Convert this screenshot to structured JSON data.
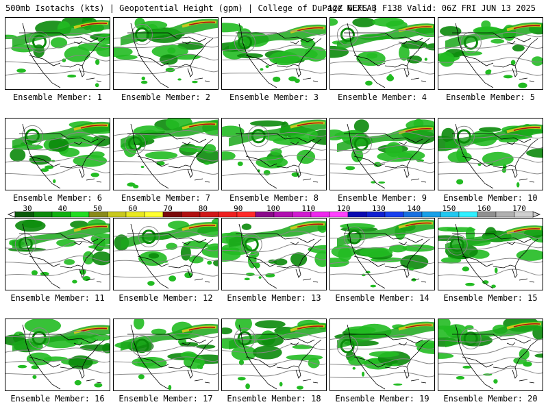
{
  "header": {
    "title_left": "500mb Isotachs (kts) | Geopotential Height (gpm) | College of DuPage NEXLAB",
    "title_right": "12Z GEFS | F138 Valid: 06Z FRI JUN 13 2025"
  },
  "members": [
    "Ensemble Member: 1",
    "Ensemble Member: 2",
    "Ensemble Member: 3",
    "Ensemble Member: 4",
    "Ensemble Member: 5",
    "Ensemble Member: 6",
    "Ensemble Member: 7",
    "Ensemble Member: 8",
    "Ensemble Member: 9",
    "Ensemble Member: 10",
    "Ensemble Member: 11",
    "Ensemble Member: 12",
    "Ensemble Member: 13",
    "Ensemble Member: 14",
    "Ensemble Member: 15",
    "Ensemble Member: 16",
    "Ensemble Member: 17",
    "Ensemble Member: 18",
    "Ensemble Member: 19",
    "Ensemble Member: 20"
  ],
  "colorbar": {
    "ticks": [
      "30",
      "40",
      "50",
      "60",
      "70",
      "80",
      "90",
      "100",
      "110",
      "120",
      "130",
      "140",
      "150",
      "160",
      "170"
    ],
    "colors": [
      "#0a5a0a",
      "#0b8a0b",
      "#10b010",
      "#22dd22",
      "#8a8a1a",
      "#c8c81e",
      "#e8e820",
      "#ffff30",
      "#7a0a0a",
      "#b01010",
      "#d01818",
      "#ee2020",
      "#ff2a2a",
      "#8a0a8a",
      "#b010b0",
      "#d01cd0",
      "#ee28ee",
      "#ff40ff",
      "#0a0ab0",
      "#1020d0",
      "#1840ee",
      "#1870e0",
      "#18a0e8",
      "#20c8f0",
      "#30f0ff",
      "#909090",
      "#b0b0b0",
      "#d0d0d0"
    ]
  }
}
